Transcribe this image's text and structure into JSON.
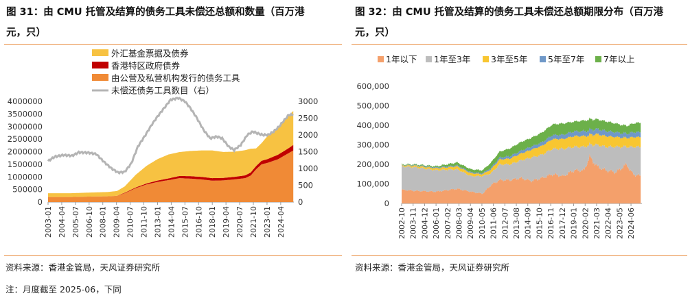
{
  "left": {
    "title_line1": "图 31：由 CMU 托管及结算的债务工具未偿还总额和数量（百万港",
    "title_line2": "元，只）",
    "source": "资料来源：香港金管局，天风证券研究所",
    "note": "注：月度截至 2025-06，下同"
  },
  "right": {
    "title_line1": "图 32：由 CMU 托管及结算的债务工具未偿还总额期限分布（百万港",
    "title_line2": "元，只）",
    "source": "资料来源：香港金管局，天风证券研究所"
  },
  "colors": {
    "accent_rule": "#e8893a",
    "fx_fund": "#f7c242",
    "hk_gov": "#c00000",
    "private": "#f08a36",
    "count_line": "#b4b4b4",
    "m_lt1": "#f4a06b",
    "m_1to3": "#bdbdbd",
    "m_3to5": "#f8c631",
    "m_5to7": "#6f98c8",
    "m_7plus": "#6cb04a"
  },
  "chart_data": [
    {
      "type": "area",
      "title": "",
      "stacked": true,
      "x": [
        "2003-01",
        "2004-04",
        "2005-07",
        "2006-10",
        "2008-01",
        "2009-04",
        "2010-07",
        "2011-10",
        "2013-01",
        "2014-04",
        "2015-07",
        "2016-10",
        "2018-01",
        "2019-04",
        "2020-07",
        "2021-10",
        "2023-01",
        "2024-04"
      ],
      "y_left_ticks": [
        "0",
        "500000",
        "1000000",
        "1500000",
        "2000000",
        "2500000",
        "3000000",
        "3500000",
        "4000000"
      ],
      "y_right_ticks": [
        "0",
        "500",
        "1000",
        "1500",
        "2000",
        "2500",
        "3000"
      ],
      "ylim_left": [
        0,
        4000000
      ],
      "ylim_right": [
        0,
        3000
      ],
      "legend": [
        "外汇基金票据及债券",
        "香港特区政府债券",
        "由公营及私营机构发行的债务工具",
        "未偿还债务工具数目（右）"
      ],
      "legend_position": "top-left",
      "series": [
        {
          "name": "由公营及私营机构发行的债务工具",
          "kind": "area",
          "color": "#f08a36",
          "x": [
            2003.0,
            2005.0,
            2007.0,
            2008.5,
            2009.3,
            2010.0,
            2011.0,
            2012.0,
            2013.0,
            2014.0,
            2015.0,
            2016.0,
            2017.0,
            2018.0,
            2019.0,
            2020.0,
            2021.0,
            2021.5,
            2022.0,
            2022.5,
            2023.0,
            2024.0,
            2025.0,
            2025.4
          ],
          "values": [
            200000,
            200000,
            220000,
            230000,
            250000,
            350000,
            550000,
            700000,
            800000,
            870000,
            950000,
            930000,
            900000,
            850000,
            860000,
            900000,
            950000,
            1050000,
            1300000,
            1500000,
            1550000,
            1700000,
            1950000,
            2050000
          ]
        },
        {
          "name": "香港特区政府债券",
          "kind": "area",
          "color": "#c00000",
          "x": [
            2003.0,
            2009.3,
            2010.0,
            2012.0,
            2014.0,
            2016.0,
            2018.0,
            2020.0,
            2021.0,
            2022.0,
            2023.0,
            2024.0,
            2025.0,
            2025.4
          ],
          "values": [
            0,
            0,
            20000,
            40000,
            70000,
            100000,
            100000,
            100000,
            110000,
            130000,
            150000,
            180000,
            200000,
            220000
          ]
        },
        {
          "name": "外汇基金票据及债券",
          "kind": "area",
          "color": "#f7c242",
          "x": [
            2003.0,
            2005.0,
            2007.0,
            2008.5,
            2009.3,
            2010.0,
            2011.0,
            2012.0,
            2013.0,
            2014.0,
            2015.0,
            2016.0,
            2017.0,
            2018.0,
            2019.0,
            2020.0,
            2021.0,
            2021.5,
            2022.0,
            2022.5,
            2023.0,
            2024.0,
            2025.0,
            2025.4
          ],
          "values": [
            150000,
            150000,
            160000,
            170000,
            190000,
            250000,
            500000,
            700000,
            850000,
            950000,
            950000,
            1000000,
            1050000,
            1100000,
            1030000,
            1000000,
            1000000,
            950000,
            700000,
            700000,
            900000,
            1050000,
            1300000,
            1350000
          ]
        },
        {
          "name": "未偿还债务工具数目（右）",
          "kind": "line",
          "axis": "right",
          "color": "#b4b4b4",
          "x": [
            2003.0,
            2003.6,
            2004.4,
            2005.2,
            2005.8,
            2006.7,
            2007.4,
            2008.1,
            2008.8,
            2009.4,
            2010.0,
            2010.6,
            2011.2,
            2011.9,
            2012.5,
            2013.0,
            2013.6,
            2014.2,
            2014.9,
            2015.5,
            2016.0,
            2016.6,
            2017.2,
            2017.8,
            2018.4,
            2018.9,
            2019.5,
            2020.0,
            2020.6,
            2021.2,
            2021.7,
            2022.1,
            2022.6,
            2023.1,
            2023.6,
            2024.1,
            2024.6,
            2025.0,
            2025.4
          ],
          "values": [
            1220,
            1350,
            1400,
            1380,
            1480,
            1470,
            1430,
            1200,
            1000,
            880,
            900,
            1150,
            1650,
            2000,
            2320,
            2550,
            2800,
            3050,
            3100,
            3000,
            2800,
            2500,
            2150,
            1900,
            1950,
            1900,
            1650,
            1550,
            1700,
            2000,
            2100,
            2050,
            2000,
            2000,
            2100,
            2250,
            2450,
            2600,
            2600
          ]
        }
      ]
    },
    {
      "type": "area",
      "title": "",
      "stacked": true,
      "x": [
        "2002-10",
        "2003-11",
        "2004-12",
        "2006-01",
        "2007-02",
        "2008-03",
        "2009-04",
        "2010-05",
        "2011-06",
        "2012-07",
        "2013-08",
        "2014-09",
        "2015-10",
        "2016-11",
        "2017-12",
        "2019-01",
        "2020-02",
        "2021-03",
        "2022-04",
        "2023-05",
        "2024-06"
      ],
      "y_ticks": [
        "0",
        "100,000",
        "200,000",
        "300,000",
        "400,000",
        "500,000",
        "600,000"
      ],
      "ylim": [
        0,
        600000
      ],
      "legend": [
        "1年以下",
        "1年至3年",
        "3年至5年",
        "5年至7年",
        "7年以上"
      ],
      "legend_position": "top",
      "series": [
        {
          "name": "1年以下",
          "color": "#f4a06b",
          "x": [
            2002.8,
            2004.0,
            2006.0,
            2008.0,
            2009.3,
            2010.4,
            2011.2,
            2012.0,
            2013.0,
            2014.0,
            2015.0,
            2016.0,
            2017.0,
            2018.0,
            2019.0,
            2020.0,
            2020.5,
            2021.2,
            2022.0,
            2023.0,
            2024.0,
            2024.6,
            2025.4
          ],
          "values": [
            70000,
            65000,
            60000,
            75000,
            60000,
            50000,
            95000,
            120000,
            120000,
            130000,
            115000,
            130000,
            150000,
            140000,
            170000,
            170000,
            240000,
            190000,
            170000,
            160000,
            200000,
            150000,
            140000
          ]
        },
        {
          "name": "1年至3年",
          "color": "#bdbdbd",
          "x": [
            2002.8,
            2004.0,
            2006.0,
            2008.0,
            2009.3,
            2010.4,
            2011.2,
            2012.0,
            2013.0,
            2014.0,
            2015.0,
            2016.0,
            2017.0,
            2018.0,
            2019.0,
            2020.0,
            2020.5,
            2021.2,
            2022.0,
            2023.0,
            2024.0,
            2024.6,
            2025.4
          ],
          "values": [
            120000,
            120000,
            110000,
            100000,
            80000,
            90000,
            60000,
            80000,
            80000,
            90000,
            120000,
            120000,
            130000,
            140000,
            120000,
            120000,
            60000,
            110000,
            120000,
            130000,
            90000,
            140000,
            150000
          ]
        },
        {
          "name": "3年至5年",
          "color": "#f8c631",
          "x": [
            2002.8,
            2004.0,
            2006.0,
            2008.0,
            2009.3,
            2010.4,
            2011.2,
            2012.0,
            2013.0,
            2014.0,
            2015.0,
            2016.0,
            2017.0,
            2018.0,
            2019.0,
            2020.0,
            2020.5,
            2021.2,
            2022.0,
            2023.0,
            2024.0,
            2024.6,
            2025.4
          ],
          "values": [
            5000,
            8000,
            10000,
            15000,
            15000,
            10000,
            20000,
            25000,
            30000,
            35000,
            40000,
            45000,
            50000,
            50000,
            55000,
            55000,
            50000,
            55000,
            55000,
            50000,
            45000,
            50000,
            50000
          ]
        },
        {
          "name": "5年至7年",
          "color": "#6f98c8",
          "x": [
            2002.8,
            2004.0,
            2006.0,
            2008.0,
            2009.3,
            2010.4,
            2011.2,
            2012.0,
            2013.0,
            2014.0,
            2015.0,
            2016.0,
            2017.0,
            2018.0,
            2019.0,
            2020.0,
            2020.5,
            2021.2,
            2022.0,
            2023.0,
            2024.0,
            2024.6,
            2025.4
          ],
          "values": [
            2000,
            3000,
            4000,
            5000,
            5000,
            5000,
            8000,
            10000,
            12000,
            14000,
            16000,
            18000,
            20000,
            22000,
            24000,
            25000,
            25000,
            26000,
            26000,
            24000,
            22000,
            25000,
            25000
          ]
        },
        {
          "name": "7年以上",
          "color": "#6cb04a",
          "x": [
            2002.8,
            2004.0,
            2006.0,
            2008.0,
            2009.3,
            2010.4,
            2011.2,
            2012.0,
            2013.0,
            2014.0,
            2015.0,
            2016.0,
            2017.0,
            2018.0,
            2019.0,
            2020.0,
            2020.5,
            2021.2,
            2022.0,
            2023.0,
            2024.0,
            2024.6,
            2025.4
          ],
          "values": [
            3000,
            4000,
            6000,
            15000,
            15000,
            15000,
            27000,
            30000,
            40000,
            45000,
            45000,
            50000,
            55000,
            58000,
            50000,
            55000,
            55000,
            50000,
            50000,
            45000,
            40000,
            45000,
            50000
          ]
        }
      ]
    }
  ]
}
